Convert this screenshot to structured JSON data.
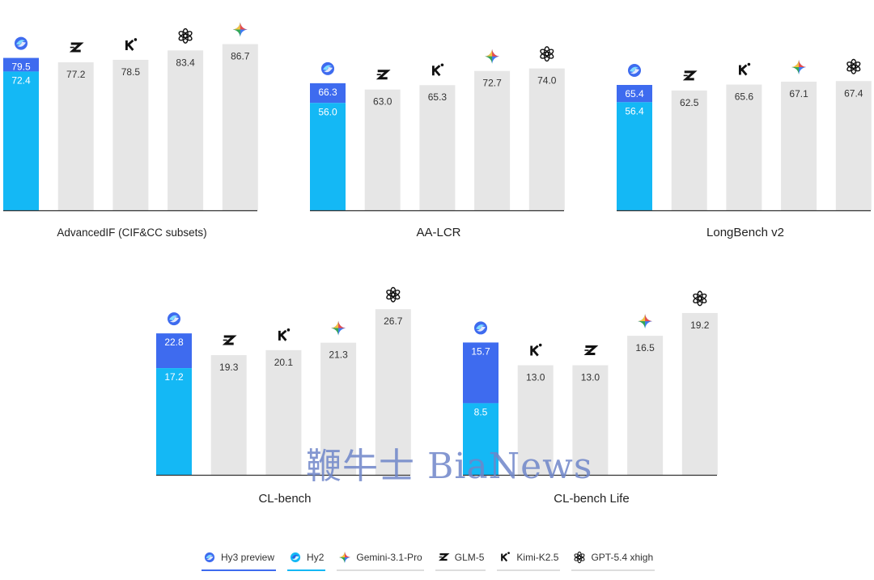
{
  "chart_data": [
    {
      "type": "bar",
      "title": "AdvancedIF (CIF&CC subsets)",
      "ylim": [
        0,
        100
      ],
      "bars": [
        {
          "model": "hy",
          "value": 79.5,
          "base": 72.4
        },
        {
          "model": "glm",
          "value": 77.2
        },
        {
          "model": "kimi",
          "value": 78.5
        },
        {
          "model": "gpt",
          "value": 83.4
        },
        {
          "model": "gemini",
          "value": 86.7
        }
      ]
    },
    {
      "type": "bar",
      "title": "AA-LCR",
      "ylim": [
        0,
        100
      ],
      "bars": [
        {
          "model": "hy",
          "value": 66.3,
          "base": 56.0
        },
        {
          "model": "glm",
          "value": 63.0
        },
        {
          "model": "kimi",
          "value": 65.3
        },
        {
          "model": "gemini",
          "value": 72.7
        },
        {
          "model": "gpt",
          "value": 74.0
        }
      ]
    },
    {
      "type": "bar",
      "title": "LongBench v2",
      "ylim": [
        0,
        100
      ],
      "bars": [
        {
          "model": "hy",
          "value": 65.4,
          "base": 56.4
        },
        {
          "model": "glm",
          "value": 62.5
        },
        {
          "model": "kimi",
          "value": 65.6
        },
        {
          "model": "gemini",
          "value": 67.1
        },
        {
          "model": "gpt",
          "value": 67.4
        }
      ]
    },
    {
      "type": "bar",
      "title": "CL-bench",
      "ylim": [
        0,
        40
      ],
      "bars": [
        {
          "model": "hy",
          "value": 22.8,
          "base": 17.2
        },
        {
          "model": "glm",
          "value": 19.3
        },
        {
          "model": "kimi",
          "value": 20.1
        },
        {
          "model": "gemini",
          "value": 21.3
        },
        {
          "model": "gpt",
          "value": 26.7
        }
      ]
    },
    {
      "type": "bar",
      "title": "CL-bench Life",
      "ylim": [
        0,
        29
      ],
      "bars": [
        {
          "model": "hy",
          "value": 15.7,
          "base": 8.5
        },
        {
          "model": "kimi",
          "value": 13.0
        },
        {
          "model": "glm",
          "value": 13.0
        },
        {
          "model": "gemini",
          "value": 16.5
        },
        {
          "model": "gpt",
          "value": 19.2
        }
      ]
    }
  ],
  "legend": [
    {
      "key": "hy3",
      "label": "Hy3 preview",
      "color": "#3e6bef"
    },
    {
      "key": "hy2",
      "label": "Hy2",
      "color": "#14b8f5"
    },
    {
      "key": "gemini",
      "label": "Gemini-3.1-Pro",
      "color": "#dddddd"
    },
    {
      "key": "glm",
      "label": "GLM-5",
      "color": "#dddddd"
    },
    {
      "key": "kimi",
      "label": "Kimi-K2.5",
      "color": "#dddddd"
    },
    {
      "key": "gpt",
      "label": "GPT-5.4 xhigh",
      "color": "#dddddd"
    }
  ],
  "colors": {
    "hy3": "#3e6bef",
    "hy2": "#14b8f5",
    "other": "#e6e6e6",
    "axis": "#333333"
  },
  "watermark": "鞭牛士 BiaNews"
}
